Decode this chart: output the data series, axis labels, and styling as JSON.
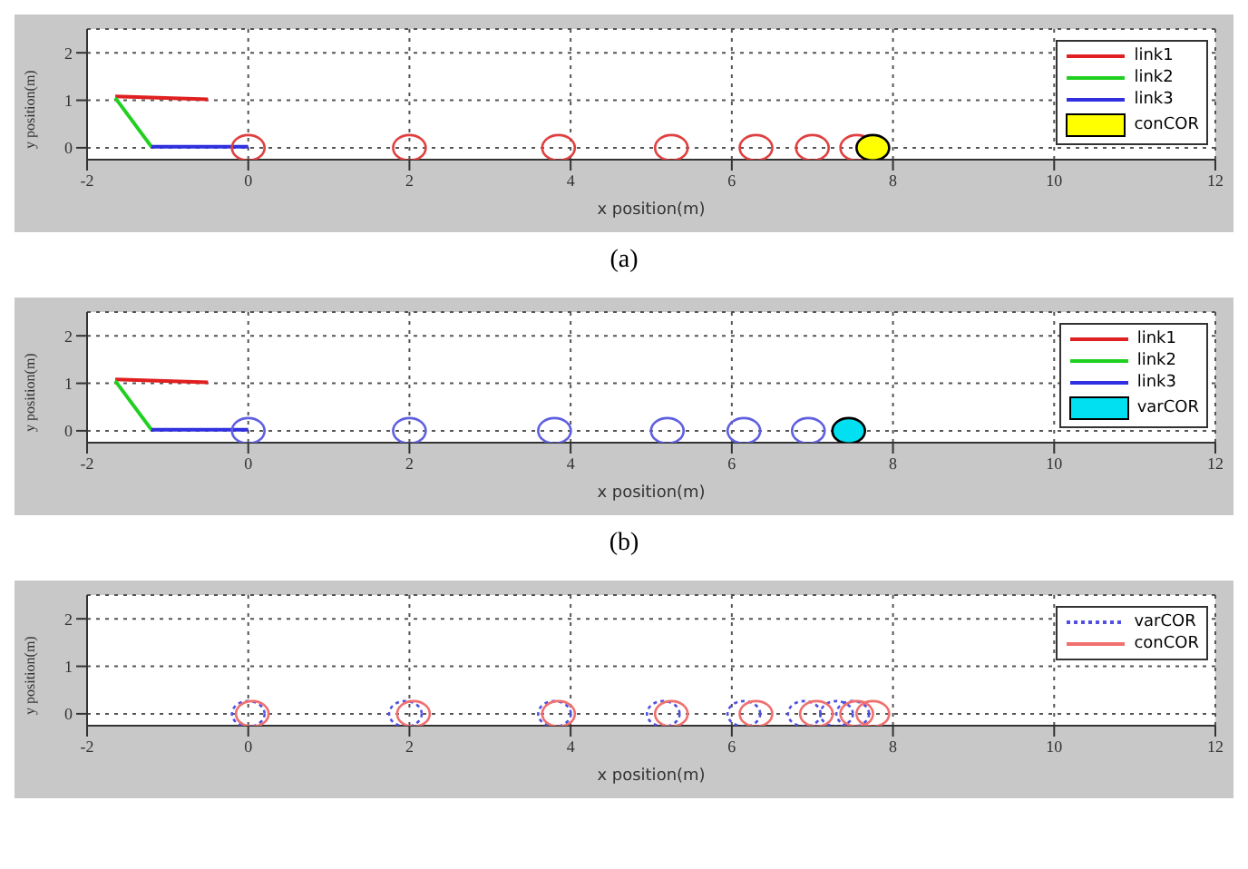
{
  "chart_data": [
    {
      "type": "line",
      "xlabel": "x position(m)",
      "ylabel": "y position(m)",
      "annotations": [
        "(a)"
      ],
      "xlim": [
        -2,
        12
      ],
      "ylim": [
        -0.25,
        2.5
      ],
      "xticks": [
        -2,
        0,
        2,
        4,
        6,
        8,
        10,
        12
      ],
      "yticks": [
        0,
        1,
        2
      ],
      "grid": true,
      "legend": "top right",
      "series": [
        {
          "name": "link1",
          "color": "#e02020",
          "x": [
            -1.65,
            -0.5
          ],
          "values": [
            1.08,
            1.02
          ]
        },
        {
          "name": "link2",
          "color": "#20d020",
          "x": [
            -1.65,
            -1.2
          ],
          "values": [
            1.05,
            0.02
          ]
        },
        {
          "name": "link3",
          "color": "#3030e0",
          "x": [
            -1.2,
            0
          ],
          "values": [
            0.02,
            0.02
          ]
        },
        {
          "name": "conCOR",
          "type": "scatter",
          "color": "#ffff00",
          "colors": [
            "#e04040",
            "#e04040",
            "#e04040",
            "#e04040",
            "#e04040",
            "#e04040",
            "#e04040",
            "#ffff00"
          ],
          "x": [
            0,
            2,
            3.85,
            5.25,
            6.3,
            7.0,
            7.55,
            7.75
          ],
          "values": [
            0,
            0,
            0,
            0,
            0,
            0,
            0,
            0
          ]
        }
      ]
    },
    {
      "type": "line",
      "xlabel": "x position(m)",
      "ylabel": "y position(m)",
      "annotations": [
        "(b)"
      ],
      "xlim": [
        -2,
        12
      ],
      "ylim": [
        -0.25,
        2.5
      ],
      "xticks": [
        -2,
        0,
        2,
        4,
        6,
        8,
        10,
        12
      ],
      "yticks": [
        0,
        1,
        2
      ],
      "grid": true,
      "legend": "top right",
      "series": [
        {
          "name": "link1",
          "color": "#e02020",
          "x": [
            -1.65,
            -0.5
          ],
          "values": [
            1.08,
            1.02
          ]
        },
        {
          "name": "link2",
          "color": "#20d020",
          "x": [
            -1.65,
            -1.2
          ],
          "values": [
            1.05,
            0.02
          ]
        },
        {
          "name": "link3",
          "color": "#3030e0",
          "x": [
            -1.2,
            0
          ],
          "values": [
            0.02,
            0.02
          ]
        },
        {
          "name": "varCOR",
          "type": "scatter",
          "color": "#00e0f0",
          "colors": [
            "#6060e0",
            "#6060e0",
            "#6060e0",
            "#6060e0",
            "#6060e0",
            "#6060e0",
            "#00e0f0"
          ],
          "x": [
            0,
            2,
            3.8,
            5.2,
            6.15,
            6.95,
            7.45
          ],
          "values": [
            0,
            0,
            0,
            0,
            0,
            0,
            0
          ]
        }
      ]
    },
    {
      "type": "scatter",
      "xlabel": "x position(m)",
      "ylabel": "y position(m)",
      "xlim": [
        -2,
        12
      ],
      "ylim": [
        -0.25,
        2.5
      ],
      "xticks": [
        -2,
        0,
        2,
        4,
        6,
        8,
        10,
        12
      ],
      "yticks": [
        0,
        1,
        2
      ],
      "grid": true,
      "legend": "top right",
      "series": [
        {
          "name": "varCOR",
          "color": "#5050e0",
          "line_style": "dotted",
          "x": [
            0,
            1.95,
            3.8,
            5.15,
            6.15,
            6.9,
            7.3,
            7.5
          ],
          "values": [
            0,
            0,
            0,
            0,
            0,
            0,
            0,
            0
          ]
        },
        {
          "name": "conCOR",
          "color": "#f07070",
          "line_style": "solid",
          "x": [
            0.05,
            2.05,
            3.85,
            5.25,
            6.3,
            7.05,
            7.55,
            7.75
          ],
          "values": [
            0,
            0,
            0,
            0,
            0,
            0,
            0,
            0
          ]
        }
      ]
    }
  ]
}
